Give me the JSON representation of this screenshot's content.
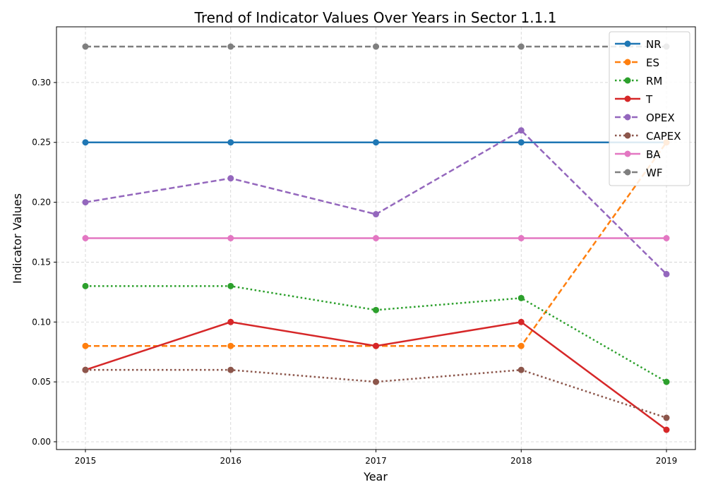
{
  "chart_data": {
    "type": "line",
    "title": "Trend of Indicator Values Over Years in Sector 1.1.1",
    "xlabel": "Year",
    "ylabel": "Indicator Values",
    "x": [
      "2015",
      "2016",
      "2017",
      "2018",
      "2019"
    ],
    "ylim": [
      -0.0065,
      0.3465
    ],
    "yticks": [
      "0.00",
      "0.05",
      "0.10",
      "0.15",
      "0.20",
      "0.25",
      "0.30"
    ],
    "grid": true,
    "legend_position": "top-right",
    "series": [
      {
        "name": "NR",
        "values": [
          0.25,
          0.25,
          0.25,
          0.25,
          0.25
        ],
        "color": "#1f77b4",
        "dash": "solid"
      },
      {
        "name": "ES",
        "values": [
          0.08,
          0.08,
          0.08,
          0.08,
          0.25
        ],
        "color": "#ff7f0e",
        "dash": "dashed"
      },
      {
        "name": "RM",
        "values": [
          0.13,
          0.13,
          0.11,
          0.12,
          0.05
        ],
        "color": "#2ca02c",
        "dash": "dotted"
      },
      {
        "name": "T",
        "values": [
          0.06,
          0.1,
          0.08,
          0.1,
          0.01
        ],
        "color": "#d62728",
        "dash": "solid"
      },
      {
        "name": "OPEX",
        "values": [
          0.2,
          0.22,
          0.19,
          0.26,
          0.14
        ],
        "color": "#9467bd",
        "dash": "dashed"
      },
      {
        "name": "CAPEX",
        "values": [
          0.06,
          0.06,
          0.05,
          0.06,
          0.02
        ],
        "color": "#8c564b",
        "dash": "dotted"
      },
      {
        "name": "BA",
        "values": [
          0.17,
          0.17,
          0.17,
          0.17,
          0.17
        ],
        "color": "#e377c2",
        "dash": "solid"
      },
      {
        "name": "WF",
        "values": [
          0.33,
          0.33,
          0.33,
          0.33,
          0.33
        ],
        "color": "#7f7f7f",
        "dash": "dashed"
      }
    ]
  }
}
